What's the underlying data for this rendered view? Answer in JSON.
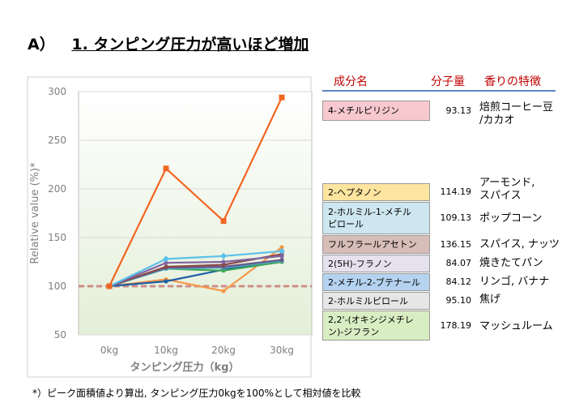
{
  "heading": {
    "label": "A）",
    "title": "1. タンピング圧力が高いほど増加"
  },
  "table": {
    "headers": {
      "component": "成分名",
      "mw": "分子量",
      "aroma": "香りの特徴"
    },
    "rows": [
      {
        "name": "4-メチルピリジン",
        "mw": "93.13",
        "aroma": "焙煎コーヒー豆\n/カカオ",
        "color": "#f7c9cf"
      },
      {
        "name": "2-ヘプタノン",
        "mw": "114.19",
        "aroma": "アーモンド,\nスパイス",
        "color": "#fde5a0"
      },
      {
        "name": "2-ホルミル-1-メチル\nピロール",
        "mw": "109.13",
        "aroma": "ポップコーン",
        "color": "#cde6ef"
      },
      {
        "name": "フルフラールアセトン",
        "mw": "136.15",
        "aroma": "スパイス, ナッツ",
        "color": "#d7bdb7"
      },
      {
        "name": "2(5H)-フラノン",
        "mw": "84.07",
        "aroma": "焼きたてパン",
        "color": "#e6e1ee"
      },
      {
        "name": "2-メチル-2-ブテナール",
        "mw": "84.12",
        "aroma": "リンゴ, バナナ",
        "color": "#b5d3f0"
      },
      {
        "name": "2-ホルミルピロール",
        "mw": "95.10",
        "aroma": "焦げ",
        "color": "#e6e6e6"
      },
      {
        "name": "2,2'-(オキシジメチレ\nン)-ジフラン",
        "mw": "178.19",
        "aroma": "マッシュルーム",
        "color": "#d9edc3"
      }
    ]
  },
  "footnote": "*）ピーク面積値より算出, タンピング圧力0kgを100%として相対値を比較",
  "chart_data": {
    "type": "line",
    "xlabel": "タンピング圧力（kg）",
    "ylabel": "Relative value (%)*",
    "categories": [
      "0kg",
      "10kg",
      "20kg",
      "30kg"
    ],
    "ylim": [
      50,
      300
    ],
    "yticks": [
      50,
      100,
      150,
      200,
      250,
      300
    ],
    "grid": true,
    "reference_line": 100,
    "series": [
      {
        "color": "#f26522",
        "marker": "square",
        "values": [
          100,
          221,
          167,
          294
        ]
      },
      {
        "color": "#5bc0eb",
        "marker": "diamond",
        "values": [
          100,
          128,
          131,
          136
        ]
      },
      {
        "color": "#8064a2",
        "marker": "circle",
        "values": [
          100,
          124,
          125,
          131
        ]
      },
      {
        "color": "#8b4a4a",
        "marker": "circle",
        "values": [
          100,
          120,
          122,
          133
        ]
      },
      {
        "color": "#6a5a8a",
        "marker": "circle",
        "values": [
          100,
          119,
          120,
          127
        ]
      },
      {
        "color": "#4bacc6",
        "marker": "circle",
        "values": [
          100,
          118,
          119,
          126
        ]
      },
      {
        "color": "#3aa655",
        "marker": "circle",
        "values": [
          100,
          118,
          116,
          125
        ]
      },
      {
        "color": "#1f5fa6",
        "marker": "circle",
        "values": [
          100,
          105,
          117,
          127
        ]
      },
      {
        "color": "#f79646",
        "marker": "circle",
        "values": [
          100,
          107,
          95,
          140
        ]
      }
    ]
  }
}
